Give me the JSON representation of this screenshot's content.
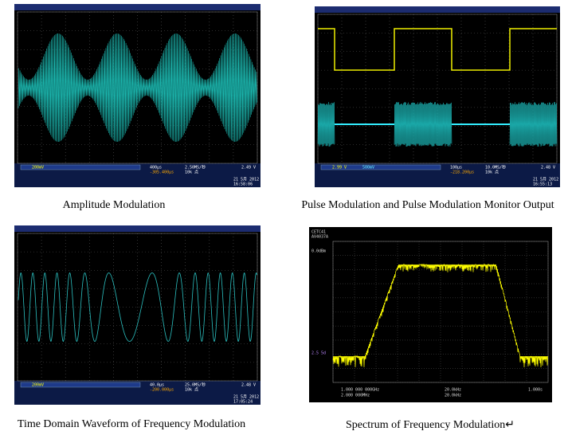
{
  "panels": [
    {
      "caption": "Amplitude Modulation",
      "status": {
        "ch1": "200mV",
        "timebase": "400μs",
        "offset": "-305.400μs",
        "rate": "2.50MS/秒",
        "points": "10k 点",
        "trigger": "2.49 V",
        "date": "21 5月 2012",
        "time": "16:58:06"
      }
    },
    {
      "caption": "Pulse Modulation and Pulse Modulation Monitor Output",
      "status": {
        "ch1": "2.99 V",
        "ch2": "500mV",
        "timebase": "100μs",
        "offset": "-218.200μs",
        "rate": "10.0MS/秒",
        "points": "10k 点",
        "trigger": "2.48 V",
        "date": "21 5月 2012",
        "time": "16:55:13"
      }
    },
    {
      "caption": "Time Domain Waveform of Frequency Modulation",
      "status": {
        "ch1": "200mV",
        "timebase": "40.0μs",
        "offset": "-200.000μs",
        "rate": "25.0MS/秒",
        "points": "10k 点",
        "trigger": "2.48 V",
        "date": "21 5月 2012",
        "time": "17:05:24"
      }
    },
    {
      "caption": "Spectrum of Frequency Modulation↵",
      "screen": {
        "maker": "CETC41",
        "model": "AV4037A",
        "ref": "0.0dBm",
        "scale": "2.5 5d",
        "center": "1.000 000 000GHz",
        "span": "2.000 000MHz",
        "rbw": "20.0kHz",
        "vbw": "20.0kHz",
        "sweep": "1.000s"
      }
    }
  ]
}
